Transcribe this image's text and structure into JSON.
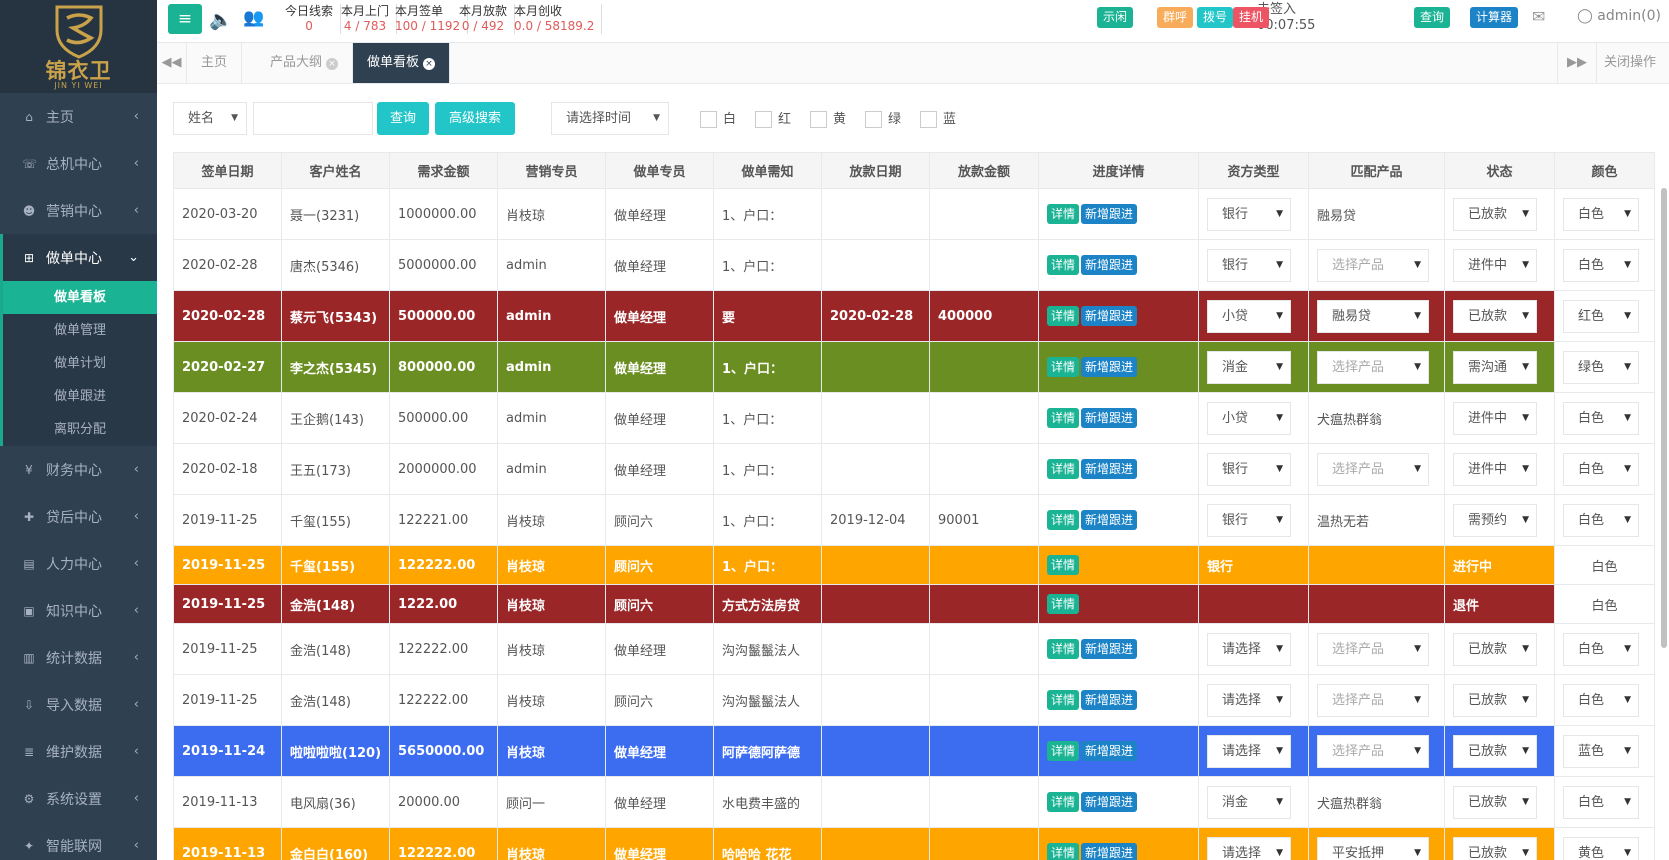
{
  "brand": {
    "name_cn": "锦衣卫",
    "name_en": "JIN YI WEI"
  },
  "sidebar": {
    "items": [
      {
        "icon": "⌂",
        "label": "主页",
        "chev": "‹"
      },
      {
        "icon": "☏",
        "label": "总机中心",
        "chev": "‹"
      },
      {
        "icon": "☻",
        "label": "营销中心",
        "chev": "‹"
      },
      {
        "icon": "⊞",
        "label": "做单中心",
        "chev": "⌄"
      },
      {
        "icon": "¥",
        "label": "财务中心",
        "chev": "‹"
      },
      {
        "icon": "✚",
        "label": "贷后中心",
        "chev": "‹"
      },
      {
        "icon": "▤",
        "label": "人力中心",
        "chev": "‹"
      },
      {
        "icon": "▣",
        "label": "知识中心",
        "chev": "‹"
      },
      {
        "icon": "▥",
        "label": "统计数据",
        "chev": "‹"
      },
      {
        "icon": "⇩",
        "label": "导入数据",
        "chev": "‹"
      },
      {
        "icon": "≣",
        "label": "维护数据",
        "chev": "‹"
      },
      {
        "icon": "⚙",
        "label": "系统设置",
        "chev": "‹"
      },
      {
        "icon": "✦",
        "label": "智能联网",
        "chev": "‹"
      }
    ],
    "subitems": [
      "做单看板",
      "做单管理",
      "做单计划",
      "做单跟进",
      "离职分配"
    ]
  },
  "topbar": {
    "menu_glyph": "≡",
    "speaker_glyph": "🔈",
    "users_glyph": "👥",
    "stats": [
      {
        "label": "今日线索",
        "value": "0"
      },
      {
        "label": "本月上门",
        "value": "4 / 783"
      },
      {
        "label": "本月签单",
        "value": "100 / 1192"
      },
      {
        "label": "本月放款",
        "value": "0 / 492"
      },
      {
        "label": "本月创收",
        "value": "0.0 / 58189.2"
      }
    ],
    "signin_status": "未签入",
    "signin_time": "00:07:55",
    "status_buttons": [
      {
        "label": "示闲",
        "color": "#1ab394"
      },
      {
        "label": "群呼",
        "color": "#f8ac59"
      },
      {
        "label": "拨号",
        "color": "#23c6c8"
      },
      {
        "label": "挂机",
        "color": "#ed5565"
      }
    ],
    "query_label": "查询",
    "calc_label": "计算器",
    "mail_glyph": "✉",
    "user_label": "admin(0)"
  },
  "tabs": {
    "prev_glyph": "◀◀",
    "next_glyph": "▶▶",
    "close_x": "×",
    "items": [
      "主页",
      "产品大纲",
      "做单看板"
    ],
    "close_ops": "关闭操作"
  },
  "search": {
    "field_select": "姓名",
    "input_value": "",
    "query_btn": "查询",
    "advanced_btn": "高级搜索",
    "time_select": "请选择时间",
    "caret": "▼",
    "colors": [
      "白",
      "红",
      "黄",
      "绿",
      "蓝"
    ]
  },
  "table": {
    "headers": [
      "签单日期",
      "客户姓名",
      "需求金额",
      "营销专员",
      "做单专员",
      "做单需知",
      "放款日期",
      "放款金额",
      "进度详情",
      "资方类型",
      "匹配产品",
      "状态",
      "颜色"
    ],
    "detail_label": "详情",
    "follow_label": "新增跟进",
    "rows": [
      {
        "date": "2020-03-20",
        "name": "聂一(3231)",
        "amount": "1000000.00",
        "sales": "肖枝琼",
        "op": "做单经理",
        "note": "1、户口：",
        "loan_date": "",
        "loan_amt": "",
        "fund": "银行",
        "product": "融易贷",
        "status": "已放款",
        "color": "白色"
      },
      {
        "date": "2020-02-28",
        "name": "唐杰(5346)",
        "amount": "5000000.00",
        "sales": "admin",
        "op": "做单经理",
        "note": "1、户口：",
        "loan_date": "",
        "loan_amt": "",
        "fund": "银行",
        "product": "选择产品",
        "status": "进件中",
        "color": "白色"
      },
      {
        "date": "2020-02-28",
        "name": "蔡元飞(5343)",
        "amount": "500000.00",
        "sales": "admin",
        "op": "做单经理",
        "note": "要",
        "loan_date": "2020-02-28",
        "loan_amt": "400000",
        "fund": "小贷",
        "product": "融易贷",
        "status": "已放款",
        "color": "红色"
      },
      {
        "date": "2020-02-27",
        "name": "李之杰(5345)",
        "amount": "800000.00",
        "sales": "admin",
        "op": "做单经理",
        "note": "1、户口：",
        "loan_date": "",
        "loan_amt": "",
        "fund": "消金",
        "product": "选择产品",
        "status": "需沟通",
        "color": "绿色"
      },
      {
        "date": "2020-02-24",
        "name": "王企鹅(143)",
        "amount": "500000.00",
        "sales": "admin",
        "op": "做单经理",
        "note": "1、户口：",
        "loan_date": "",
        "loan_amt": "",
        "fund": "小贷",
        "product": "犬瘟热群翁",
        "status": "进件中",
        "color": "白色"
      },
      {
        "date": "2020-02-18",
        "name": "王五(173)",
        "amount": "2000000.00",
        "sales": "admin",
        "op": "做单经理",
        "note": "1、户口：",
        "loan_date": "",
        "loan_amt": "",
        "fund": "银行",
        "product": "选择产品",
        "status": "进件中",
        "color": "白色"
      },
      {
        "date": "2019-11-25",
        "name": "千玺(155)",
        "amount": "122221.00",
        "sales": "肖枝琼",
        "op": "顾问六",
        "note": "1、户口：",
        "loan_date": "2019-12-04",
        "loan_amt": "90001",
        "fund": "银行",
        "product": "温热无若",
        "status": "需预约",
        "color": "白色"
      },
      {
        "date": "2019-11-25",
        "name": "千玺(155)",
        "amount": "122222.00",
        "sales": "肖枝琼",
        "op": "顾问六",
        "note": "1、户口：",
        "loan_date": "",
        "loan_amt": "",
        "fund": "银行",
        "product": "",
        "status": "进行中",
        "color": "白色"
      },
      {
        "date": "2019-11-25",
        "name": "金浩(148)",
        "amount": "1222.00",
        "sales": "肖枝琼",
        "op": "顾问六",
        "note": "方式方法房贷",
        "loan_date": "",
        "loan_amt": "",
        "fund": "",
        "product": "",
        "status": "退件",
        "color": "白色"
      },
      {
        "date": "2019-11-25",
        "name": "金浩(148)",
        "amount": "122222.00",
        "sales": "肖枝琼",
        "op": "做单经理",
        "note": "沟沟鬣鬣法人",
        "loan_date": "",
        "loan_amt": "",
        "fund": "请选择",
        "product": "选择产品",
        "status": "已放款",
        "color": "白色"
      },
      {
        "date": "2019-11-25",
        "name": "金浩(148)",
        "amount": "122222.00",
        "sales": "肖枝琼",
        "op": "顾问六",
        "note": "沟沟鬣鬣法人",
        "loan_date": "",
        "loan_amt": "",
        "fund": "请选择",
        "product": "选择产品",
        "status": "已放款",
        "color": "白色"
      },
      {
        "date": "2019-11-24",
        "name": "啦啦啦啦(120)",
        "amount": "5650000.00",
        "sales": "肖枝琼",
        "op": "做单经理",
        "note": "阿萨德阿萨德",
        "loan_date": "",
        "loan_amt": "",
        "fund": "请选择",
        "product": "选择产品",
        "status": "已放款",
        "color": "蓝色"
      },
      {
        "date": "2019-11-13",
        "name": "电风扇(36)",
        "amount": "20000.00",
        "sales": "顾问一",
        "op": "做单经理",
        "note": "水电费丰盛的",
        "loan_date": "",
        "loan_amt": "",
        "fund": "消金",
        "product": "犬瘟热群翁",
        "status": "已放款",
        "color": "白色"
      },
      {
        "date": "2019-11-13",
        "name": "金白白(160)",
        "amount": "122222.00",
        "sales": "肖枝琼",
        "op": "做单经理",
        "note": "哈哈哈 花花",
        "loan_date": "",
        "loan_amt": "",
        "fund": "请选择",
        "product": "平安抵押",
        "status": "已放款",
        "color": "黄色"
      }
    ]
  }
}
